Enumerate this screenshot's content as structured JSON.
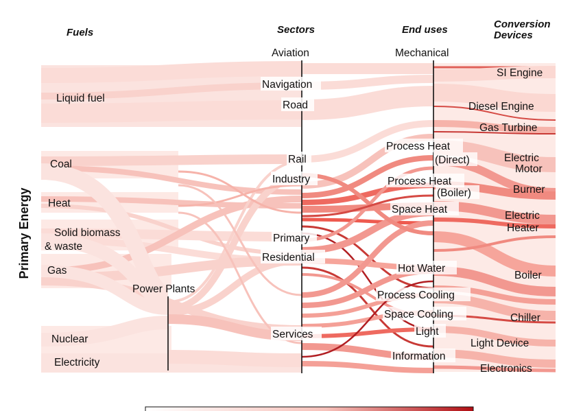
{
  "headers": {
    "fuels": "Fuels",
    "sectors": "Sectors",
    "end_uses": "End uses",
    "conversion_devices_line1": "Conversion",
    "conversion_devices_line2": "Devices"
  },
  "y_axis_label": "Primary Energy",
  "fuels": [
    "Liquid fuel",
    "Coal",
    "Heat",
    "Solid biomass",
    "& waste",
    "Gas",
    "Nuclear",
    "Electricity"
  ],
  "power_plants": "Power Plants",
  "sectors": [
    "Aviation",
    "Navigation",
    "Road",
    "Rail",
    "Industry",
    "Primary",
    "Residential",
    "Services"
  ],
  "end_uses": [
    "Mechanical",
    "Process Heat",
    "(Direct)",
    "Process Heat",
    "(Boiler)",
    "Space Heat",
    "Hot Water",
    "Process Cooling",
    "Space Cooling",
    "Light",
    "Information"
  ],
  "devices": [
    "SI Engine",
    "Diesel Engine",
    "Gas Turbine",
    "Electric",
    "Motor",
    "Burner",
    "Electric",
    "Heater",
    "Boiler",
    "Chiller",
    "Light Device",
    "Electronics"
  ],
  "colors": {
    "light": "#fbe3df",
    "mid": "#f6a59b",
    "strong": "#ee5a4f",
    "dark": "#b11e22"
  },
  "colorbar": {
    "from": "#ffffff",
    "to": "#b10e14"
  }
}
